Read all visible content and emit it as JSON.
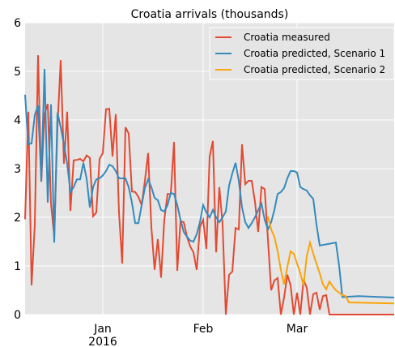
{
  "chart_data": {
    "type": "line",
    "title": "Croatia arrivals (thousands)",
    "xlabel": "",
    "ylabel": "",
    "ylim": [
      0,
      6
    ],
    "yticks": [
      0,
      1,
      2,
      3,
      4,
      5,
      6
    ],
    "grid": true,
    "legend_position": "top-right",
    "xlim": [
      "2015-12-08",
      "2016-03-31"
    ],
    "xticks": [
      {
        "date": "2016-01-01",
        "label": "Jan",
        "sublabel": "2016"
      },
      {
        "date": "2016-02-01",
        "label": "Feb",
        "sublabel": ""
      },
      {
        "date": "2016-03-01",
        "label": "Mar",
        "sublabel": ""
      }
    ],
    "colors": {
      "background": "#e5e5e5",
      "grid": "#ffffff",
      "measured": "#e24a33",
      "scenario1": "#348abd",
      "scenario2": "#fba40a"
    },
    "series": [
      {
        "name": "Croatia measured",
        "key": "measured",
        "points": [
          [
            "2015-12-08",
            1.96
          ],
          [
            "2015-12-09",
            4.17
          ],
          [
            "2015-12-10",
            0.6
          ],
          [
            "2015-12-11",
            1.85
          ],
          [
            "2015-12-12",
            5.33
          ],
          [
            "2015-12-13",
            2.73
          ],
          [
            "2015-12-14",
            4.12
          ],
          [
            "2015-12-15",
            4.33
          ],
          [
            "2015-12-16",
            2.28
          ],
          [
            "2015-12-17",
            1.6
          ],
          [
            "2015-12-18",
            3.86
          ],
          [
            "2015-12-19",
            5.23
          ],
          [
            "2015-12-20",
            3.1
          ],
          [
            "2015-12-21",
            4.17
          ],
          [
            "2015-12-22",
            2.13
          ],
          [
            "2015-12-23",
            3.17
          ],
          [
            "2015-12-24",
            3.18
          ],
          [
            "2015-12-25",
            3.2
          ],
          [
            "2015-12-26",
            3.15
          ],
          [
            "2015-12-27",
            3.27
          ],
          [
            "2015-12-28",
            3.22
          ],
          [
            "2015-12-29",
            2.02
          ],
          [
            "2015-12-30",
            2.1
          ],
          [
            "2015-12-31",
            3.2
          ],
          [
            "2016-01-01",
            3.32
          ],
          [
            "2016-01-02",
            4.22
          ],
          [
            "2016-01-03",
            4.23
          ],
          [
            "2016-01-04",
            3.25
          ],
          [
            "2016-01-05",
            4.12
          ],
          [
            "2016-01-06",
            2.1
          ],
          [
            "2016-01-07",
            1.05
          ],
          [
            "2016-01-08",
            3.85
          ],
          [
            "2016-01-09",
            3.72
          ],
          [
            "2016-01-10",
            2.53
          ],
          [
            "2016-01-11",
            2.52
          ],
          [
            "2016-01-12",
            2.42
          ],
          [
            "2016-01-13",
            2.25
          ],
          [
            "2016-01-14",
            2.75
          ],
          [
            "2016-01-15",
            3.32
          ],
          [
            "2016-01-16",
            1.8
          ],
          [
            "2016-01-17",
            0.92
          ],
          [
            "2016-01-18",
            1.55
          ],
          [
            "2016-01-19",
            0.76
          ],
          [
            "2016-01-20",
            1.95
          ],
          [
            "2016-01-21",
            2.48
          ],
          [
            "2016-01-22",
            2.48
          ],
          [
            "2016-01-23",
            3.55
          ],
          [
            "2016-01-24",
            0.9
          ],
          [
            "2016-01-25",
            1.92
          ],
          [
            "2016-01-26",
            1.9
          ],
          [
            "2016-01-27",
            1.6
          ],
          [
            "2016-01-28",
            1.4
          ],
          [
            "2016-01-29",
            1.28
          ],
          [
            "2016-01-30",
            0.92
          ],
          [
            "2016-01-31",
            1.8
          ],
          [
            "2016-02-01",
            1.95
          ],
          [
            "2016-02-02",
            1.35
          ],
          [
            "2016-02-03",
            3.25
          ],
          [
            "2016-02-04",
            3.57
          ],
          [
            "2016-02-05",
            1.28
          ],
          [
            "2016-02-06",
            2.62
          ],
          [
            "2016-02-07",
            1.85
          ],
          [
            "2016-02-08",
            0.0
          ],
          [
            "2016-02-09",
            0.82
          ],
          [
            "2016-02-10",
            0.88
          ],
          [
            "2016-02-11",
            1.78
          ],
          [
            "2016-02-12",
            1.75
          ],
          [
            "2016-02-13",
            3.5
          ],
          [
            "2016-02-14",
            2.68
          ],
          [
            "2016-02-15",
            2.75
          ],
          [
            "2016-02-16",
            2.75
          ],
          [
            "2016-02-17",
            2.32
          ],
          [
            "2016-02-18",
            1.7
          ],
          [
            "2016-02-19",
            2.62
          ],
          [
            "2016-02-20",
            2.58
          ],
          [
            "2016-02-21",
            1.55
          ],
          [
            "2016-02-22",
            0.5
          ],
          [
            "2016-02-23",
            0.7
          ],
          [
            "2016-02-24",
            0.75
          ],
          [
            "2016-02-25",
            0.0
          ],
          [
            "2016-02-26",
            0.35
          ],
          [
            "2016-02-27",
            0.82
          ],
          [
            "2016-02-28",
            0.6
          ],
          [
            "2016-02-29",
            0.0
          ],
          [
            "2016-03-01",
            0.45
          ],
          [
            "2016-03-02",
            0.0
          ],
          [
            "2016-03-03",
            0.72
          ],
          [
            "2016-03-04",
            0.55
          ],
          [
            "2016-03-05",
            0.0
          ],
          [
            "2016-03-06",
            0.42
          ],
          [
            "2016-03-07",
            0.45
          ],
          [
            "2016-03-08",
            0.1
          ],
          [
            "2016-03-09",
            0.38
          ],
          [
            "2016-03-10",
            0.4
          ],
          [
            "2016-03-11",
            0.0
          ],
          [
            "2016-03-12",
            0.0
          ],
          [
            "2016-03-31",
            0.0
          ]
        ]
      },
      {
        "name": "Croatia predicted, Scenario 1",
        "key": "scenario1",
        "points": [
          [
            "2015-12-08",
            4.52
          ],
          [
            "2015-12-09",
            3.5
          ],
          [
            "2015-12-10",
            3.52
          ],
          [
            "2015-12-11",
            4.1
          ],
          [
            "2015-12-12",
            4.3
          ],
          [
            "2015-12-13",
            2.75
          ],
          [
            "2015-12-14",
            5.05
          ],
          [
            "2015-12-15",
            2.3
          ],
          [
            "2015-12-16",
            4.32
          ],
          [
            "2015-12-17",
            1.48
          ],
          [
            "2015-12-18",
            4.15
          ],
          [
            "2015-12-19",
            3.85
          ],
          [
            "2015-12-20",
            3.5
          ],
          [
            "2015-12-21",
            3.1
          ],
          [
            "2015-12-22",
            2.52
          ],
          [
            "2015-12-23",
            2.62
          ],
          [
            "2015-12-24",
            2.78
          ],
          [
            "2015-12-25",
            2.78
          ],
          [
            "2015-12-26",
            3.12
          ],
          [
            "2015-12-27",
            2.8
          ],
          [
            "2015-12-28",
            2.2
          ],
          [
            "2015-12-29",
            2.62
          ],
          [
            "2015-12-30",
            2.78
          ],
          [
            "2015-12-31",
            2.8
          ],
          [
            "2016-01-01",
            2.86
          ],
          [
            "2016-01-02",
            2.95
          ],
          [
            "2016-01-03",
            3.08
          ],
          [
            "2016-01-04",
            3.05
          ],
          [
            "2016-01-05",
            2.95
          ],
          [
            "2016-01-06",
            2.8
          ],
          [
            "2016-01-07",
            2.8
          ],
          [
            "2016-01-08",
            2.8
          ],
          [
            "2016-01-09",
            2.62
          ],
          [
            "2016-01-10",
            2.3
          ],
          [
            "2016-01-11",
            1.88
          ],
          [
            "2016-01-12",
            1.88
          ],
          [
            "2016-01-13",
            2.25
          ],
          [
            "2016-01-14",
            2.6
          ],
          [
            "2016-01-15",
            2.78
          ],
          [
            "2016-01-16",
            2.62
          ],
          [
            "2016-01-17",
            2.4
          ],
          [
            "2016-01-18",
            2.35
          ],
          [
            "2016-01-19",
            2.15
          ],
          [
            "2016-01-20",
            2.12
          ],
          [
            "2016-01-21",
            2.25
          ],
          [
            "2016-01-22",
            2.5
          ],
          [
            "2016-01-23",
            2.48
          ],
          [
            "2016-01-24",
            2.25
          ],
          [
            "2016-01-25",
            1.95
          ],
          [
            "2016-01-26",
            1.7
          ],
          [
            "2016-01-27",
            1.6
          ],
          [
            "2016-01-28",
            1.52
          ],
          [
            "2016-01-29",
            1.5
          ],
          [
            "2016-01-30",
            1.65
          ],
          [
            "2016-01-31",
            1.9
          ],
          [
            "2016-02-01",
            2.25
          ],
          [
            "2016-02-02",
            2.1
          ],
          [
            "2016-02-03",
            2.0
          ],
          [
            "2016-02-04",
            2.15
          ],
          [
            "2016-02-05",
            2.0
          ],
          [
            "2016-02-06",
            1.9
          ],
          [
            "2016-02-07",
            2.0
          ],
          [
            "2016-02-08",
            2.12
          ],
          [
            "2016-02-09",
            2.65
          ],
          [
            "2016-02-10",
            2.9
          ],
          [
            "2016-02-11",
            3.12
          ],
          [
            "2016-02-12",
            2.75
          ],
          [
            "2016-02-13",
            2.2
          ],
          [
            "2016-02-14",
            1.9
          ],
          [
            "2016-02-15",
            1.78
          ],
          [
            "2016-02-16",
            1.88
          ],
          [
            "2016-02-17",
            2.0
          ],
          [
            "2016-02-18",
            2.15
          ],
          [
            "2016-02-19",
            2.28
          ],
          [
            "2016-02-20",
            1.95
          ],
          [
            "2016-02-21",
            1.75
          ],
          [
            "2016-02-22",
            1.9
          ],
          [
            "2016-02-23",
            2.15
          ],
          [
            "2016-02-24",
            2.48
          ],
          [
            "2016-02-25",
            2.52
          ],
          [
            "2016-02-26",
            2.6
          ],
          [
            "2016-02-27",
            2.8
          ],
          [
            "2016-02-28",
            2.95
          ],
          [
            "2016-02-29",
            2.95
          ],
          [
            "2016-03-01",
            2.92
          ],
          [
            "2016-03-02",
            2.62
          ],
          [
            "2016-03-03",
            2.58
          ],
          [
            "2016-03-04",
            2.55
          ],
          [
            "2016-03-05",
            2.45
          ],
          [
            "2016-03-06",
            2.38
          ],
          [
            "2016-03-07",
            1.85
          ],
          [
            "2016-03-08",
            1.42
          ],
          [
            "2016-03-13",
            1.48
          ],
          [
            "2016-03-14",
            1.0
          ],
          [
            "2016-03-15",
            0.36
          ],
          [
            "2016-03-20",
            0.38
          ],
          [
            "2016-03-31",
            0.35
          ]
        ]
      },
      {
        "name": "Croatia predicted, Scenario 2",
        "key": "scenario2",
        "points": [
          [
            "2016-02-21",
            2.02
          ],
          [
            "2016-02-22",
            1.75
          ],
          [
            "2016-02-23",
            1.6
          ],
          [
            "2016-02-24",
            1.3
          ],
          [
            "2016-02-25",
            0.92
          ],
          [
            "2016-02-26",
            0.62
          ],
          [
            "2016-02-27",
            0.98
          ],
          [
            "2016-02-28",
            1.3
          ],
          [
            "2016-02-29",
            1.25
          ],
          [
            "2016-03-01",
            1.05
          ],
          [
            "2016-03-02",
            0.85
          ],
          [
            "2016-03-03",
            0.6
          ],
          [
            "2016-03-04",
            1.2
          ],
          [
            "2016-03-05",
            1.48
          ],
          [
            "2016-03-06",
            1.25
          ],
          [
            "2016-03-07",
            1.05
          ],
          [
            "2016-03-08",
            0.85
          ],
          [
            "2016-03-09",
            0.62
          ],
          [
            "2016-03-10",
            0.52
          ],
          [
            "2016-03-11",
            0.68
          ],
          [
            "2016-03-12",
            0.58
          ],
          [
            "2016-03-13",
            0.5
          ],
          [
            "2016-03-14",
            0.45
          ],
          [
            "2016-03-15",
            0.4
          ],
          [
            "2016-03-16",
            0.38
          ],
          [
            "2016-03-17",
            0.25
          ],
          [
            "2016-03-31",
            0.23
          ]
        ]
      }
    ]
  }
}
